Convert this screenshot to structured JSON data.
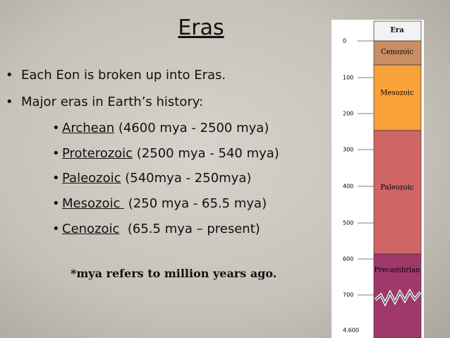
{
  "slide": {
    "title": "Eras",
    "bullets": [
      "Each Eon is broken up into Eras.",
      "Major eras in Earth’s history:"
    ],
    "sub_bullets": [
      {
        "name": "Archean",
        "range": " (4600 mya - 2500 mya)"
      },
      {
        "name": "Proterozoic",
        "range": " (2500 mya - 540 mya)"
      },
      {
        "name": "Paleozoic",
        "range": " (540mya - 250mya)"
      },
      {
        "name": "Mesozoic ",
        "range": " (250 mya - 65.5 mya)"
      },
      {
        "name": "Cenozoic",
        "range": "  (65.5 mya – present)"
      }
    ],
    "note": "*mya refers to million years ago."
  },
  "column": {
    "header": "Era",
    "ticks": [
      "0",
      "100",
      "200",
      "300",
      "400",
      "500",
      "600",
      "700",
      "4,600"
    ],
    "eras": [
      "Cenozoic",
      "Mesozoic",
      "Paleozoic",
      "Precambrian"
    ]
  }
}
